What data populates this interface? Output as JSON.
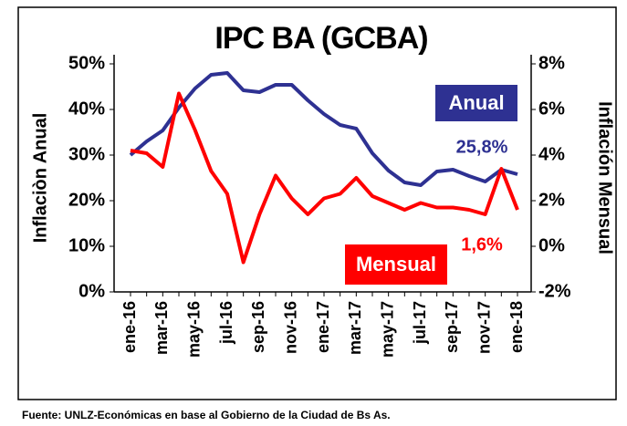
{
  "chart_data": {
    "type": "line",
    "title": "IPC BA (GCBA)",
    "y_label": "Inflaciòn Anual",
    "y2_label": "Inflación Mensual",
    "categories": [
      "ene-16",
      null,
      "mar-16",
      null,
      "may-16",
      null,
      "jul-16",
      null,
      "sep-16",
      null,
      "nov-16",
      null,
      "ene-17",
      null,
      "mar-17",
      null,
      "may-17",
      null,
      "jul-17",
      null,
      "sep-17",
      null,
      "nov-17",
      null,
      "ene-18"
    ],
    "series": [
      {
        "name": "Anual",
        "color": "#2e3192",
        "values": [
          30,
          33,
          35.4,
          40.4,
          44.6,
          47.6,
          48,
          44.2,
          43.8,
          45.4,
          45.4,
          42,
          39,
          36.6,
          35.8,
          30.4,
          26.6,
          24,
          23.4,
          26.4,
          26.8,
          25.4,
          24.2,
          26.8,
          25.8
        ]
      },
      {
        "name": "Mensual",
        "color": "#ff0000",
        "axis": "y2",
        "values": [
          4.2,
          4.08,
          3.48,
          6.7,
          5.1,
          3.3,
          2.3,
          -0.7,
          1.4,
          3.1,
          2.1,
          1.4,
          2.1,
          2.3,
          3.0,
          2.2,
          1.9,
          1.6,
          1.9,
          1.7,
          1.7,
          1.6,
          1.4,
          3.4,
          1.6
        ]
      }
    ],
    "annotations": [
      "25,8%",
      "1,6%"
    ],
    "source": "Fuente: UNLZ-Económicas en base al Gobierno de la Ciudad de Bs As.",
    "ylim": [
      0,
      50
    ],
    "yticks": [
      {
        "value": 0,
        "label": "0%"
      },
      {
        "value": 10,
        "label": "10%"
      },
      {
        "value": 20,
        "label": "20%"
      },
      {
        "value": 30,
        "label": "30%"
      },
      {
        "value": 40,
        "label": "40%"
      },
      {
        "value": 50,
        "label": "50%"
      }
    ],
    "y2lim": [
      -2,
      8
    ],
    "y2ticks": [
      {
        "value": -2,
        "label": "-2%"
      },
      {
        "value": 0,
        "label": "0%"
      },
      {
        "value": 2,
        "label": "2%"
      },
      {
        "value": 4,
        "label": "4%"
      },
      {
        "value": 6,
        "label": "6%"
      },
      {
        "value": 8,
        "label": "8%"
      }
    ],
    "grid": false
  }
}
